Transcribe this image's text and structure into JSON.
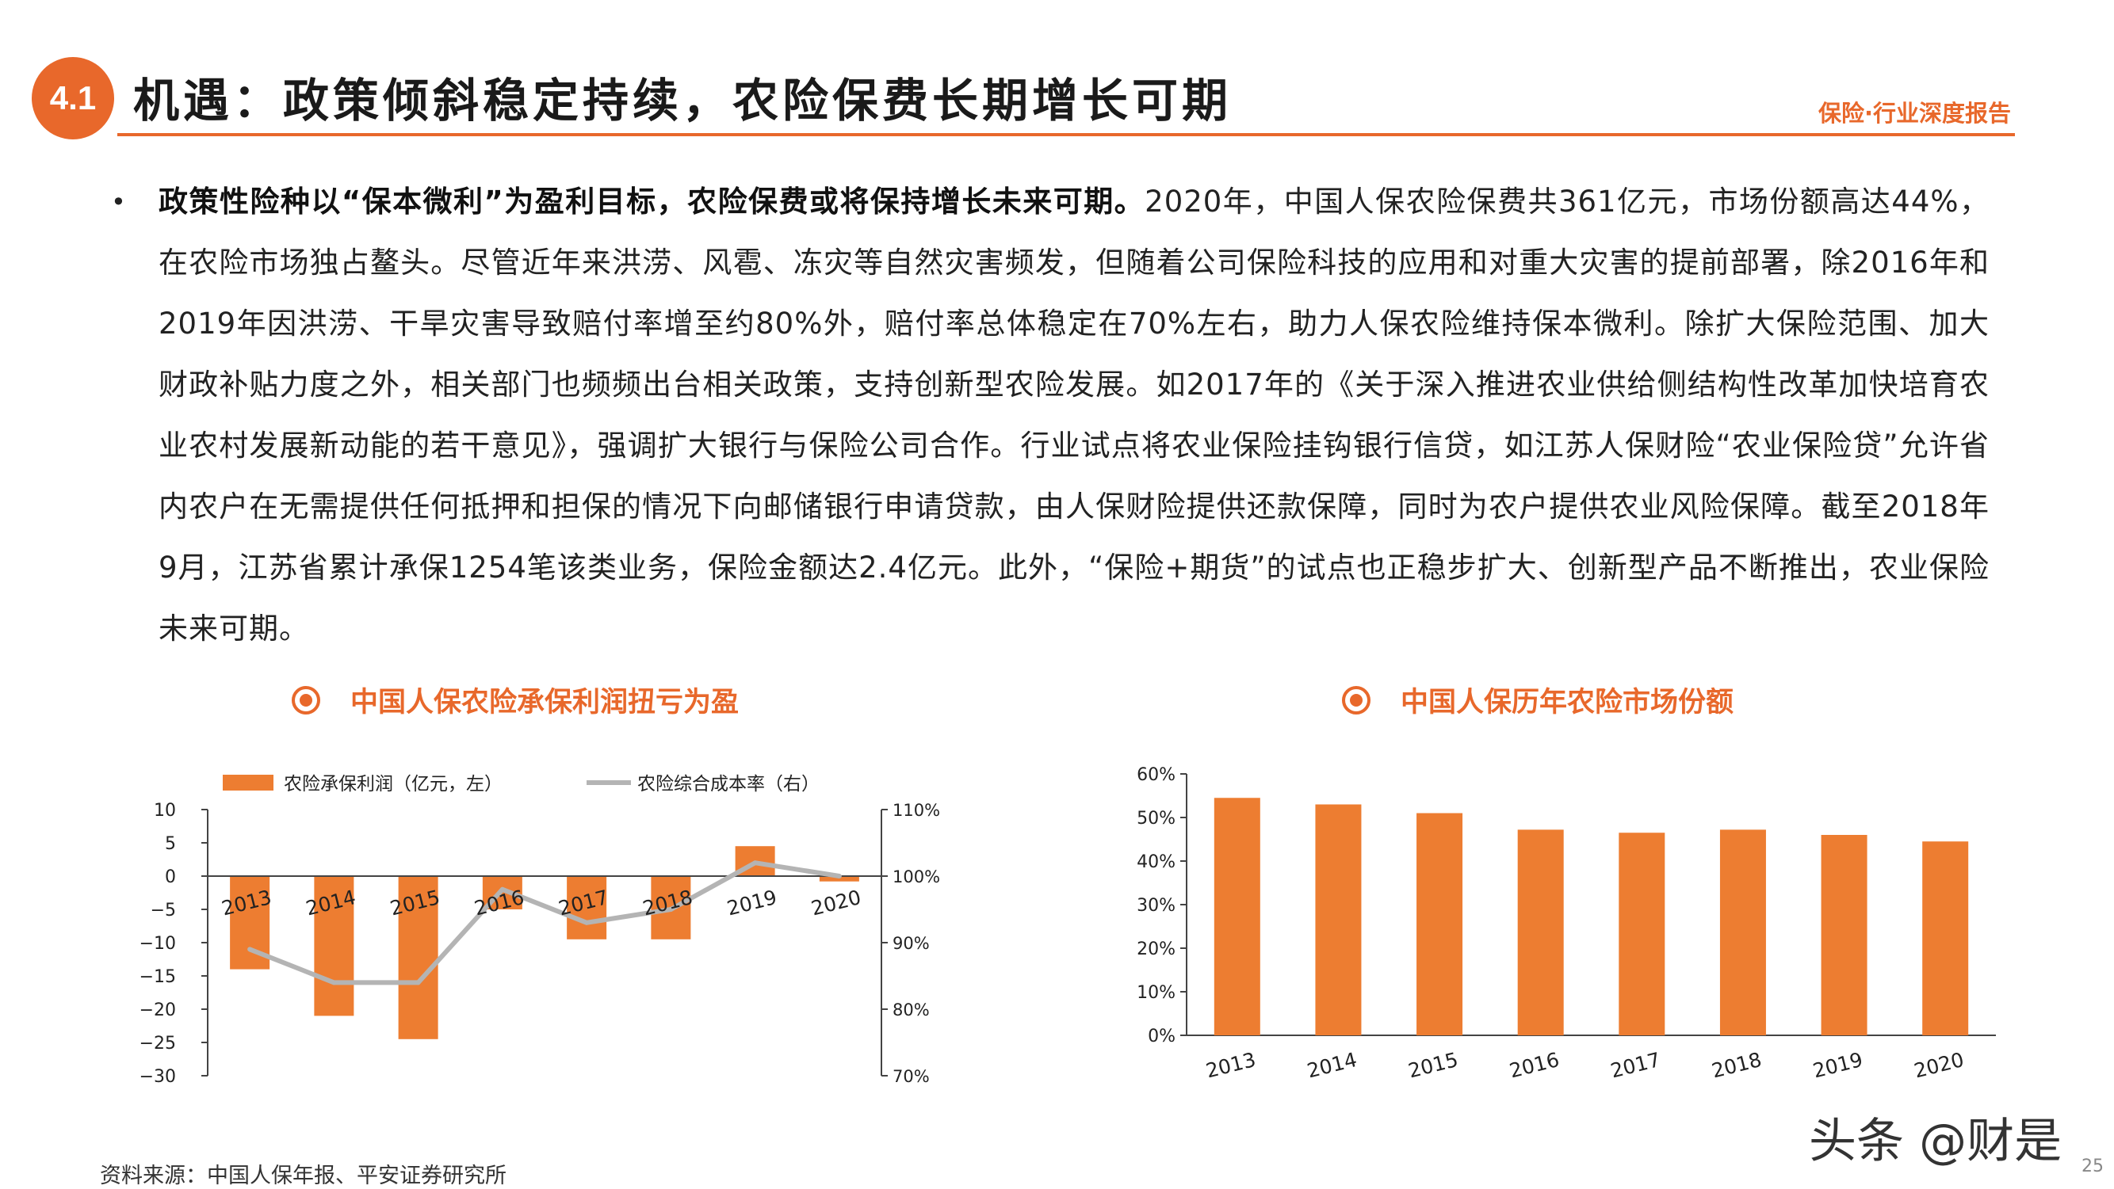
{
  "header": {
    "section_number": "4.1",
    "title": "机遇：政策倾斜稳定持续，农险保费长期增长可期",
    "tagline": "保险·行业深度报告"
  },
  "body": {
    "bullet": "•",
    "bold_lead": "政策性险种以“保本微利”为盈利目标，农险保费或将保持增长未来可期。",
    "text": "2020年，中国人保农险保费共361亿元，市场份额高达44%，在农险市场独占鳌头。尽管近年来洪涝、风雹、冻灾等自然灾害频发，但随着公司保险科技的应用和对重大灾害的提前部署，除2016年和2019年因洪涝、干旱灾害导致赔付率增至约80%外，赔付率总体稳定在70%左右，助力人保农险维持保本微利。除扩大保险范围、加大财政补贴力度之外，相关部门也频频出台相关政策，支持创新型农险发展。如2017年的《关于深入推进农业供给侧结构性改革加快培育农业农村发展新动能的若干意见》，强调扩大银行与保险公司合作。行业试点将农业保险挂钩银行信贷，如江苏人保财险“农业保险贷”允许省内农户在无需提供任何抵押和担保的情况下向邮储银行申请贷款，由人保财险提供还款保障，同时为农户提供农业风险保障。截至2018年9月，江苏省累计承保1254笔该类业务，保险金额达2.4亿元。此外，“保险+期货”的试点也正稳步扩大、创新型产品不断推出，农业保险未来可期。"
  },
  "footer": {
    "source": "资料来源：中国人保年报、平安证券研究所",
    "watermark": "头条 @财是",
    "page": "25"
  },
  "colors": {
    "accent": "#e8682b",
    "bar": "#ed7d31",
    "line": "#b4b4b4"
  },
  "chart_data": [
    {
      "type": "bar",
      "title": "中国人保农险承保利润扭亏为盈",
      "categories": [
        "2013",
        "2014",
        "2015",
        "2016",
        "2017",
        "2018",
        "2019",
        "2020"
      ],
      "series": [
        {
          "name": "农险承保利润（亿元，左）",
          "type": "bar",
          "axis": "left",
          "values": [
            -14,
            -21,
            -24.5,
            -5,
            -9.5,
            -9.5,
            4.5,
            -0.8
          ]
        },
        {
          "name": "农险综合成本率（右）",
          "type": "line",
          "axis": "right",
          "values": [
            89,
            84,
            84,
            98,
            93,
            95,
            102,
            100
          ]
        }
      ],
      "ylim": [
        -30,
        10
      ],
      "y_ticks": [
        "10",
        "5",
        "0",
        "−5",
        "−10",
        "−15",
        "−20",
        "−25",
        "−30"
      ],
      "y2lim": [
        70,
        110
      ],
      "y2_ticks": [
        "110%",
        "100%",
        "90%",
        "80%",
        "70%"
      ],
      "legend": "top"
    },
    {
      "type": "bar",
      "title": "中国人保历年农险市场份额",
      "categories": [
        "2013",
        "2014",
        "2015",
        "2016",
        "2017",
        "2018",
        "2019",
        "2020"
      ],
      "values": [
        54.5,
        53,
        51,
        47.2,
        46.5,
        47.2,
        46,
        44.5
      ],
      "ylim": [
        0,
        60
      ],
      "y_ticks": [
        "60%",
        "50%",
        "40%",
        "30%",
        "20%",
        "10%",
        "0%"
      ]
    }
  ]
}
